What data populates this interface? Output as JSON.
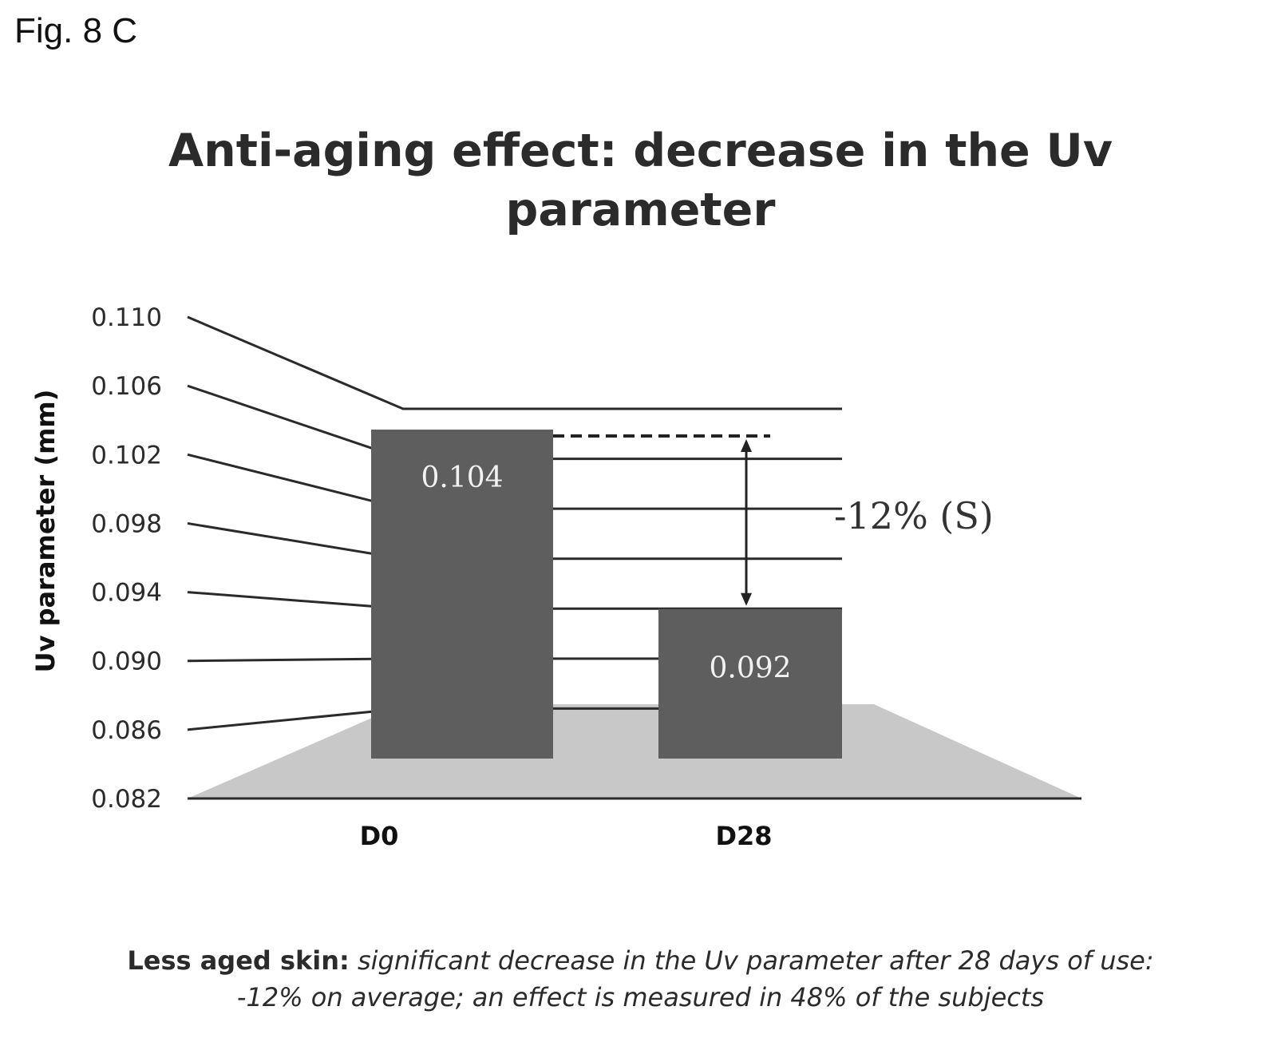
{
  "figure_label": "Fig. 8 C",
  "chart_data": {
    "type": "bar",
    "title_lines": [
      "Anti-aging effect: decrease in the Uv",
      "parameter"
    ],
    "ylabel": "Uv parameter (mm)",
    "xlabel": "",
    "categories": [
      "D0",
      "D28"
    ],
    "values": [
      0.104,
      0.092
    ],
    "data_labels": [
      "0.104",
      "0.092"
    ],
    "ylim": [
      0.082,
      0.11
    ],
    "yticks": [
      "0.110",
      "0.106",
      "0.102",
      "0.098",
      "0.094",
      "0.090",
      "0.086",
      "0.082"
    ],
    "grid": true,
    "annotation": "-12% (S)",
    "colors": {
      "bar": "#5e5e5e",
      "floor": "#c8c8c8",
      "grid": "#2a2a2a",
      "text": "#2b2b2b"
    }
  },
  "caption": {
    "lead": "Less aged skin:",
    "line1_rest": " significant decrease in the Uv parameter after 28 days of use:",
    "line2": "-12% on average; an effect is measured in 48% of the subjects"
  }
}
